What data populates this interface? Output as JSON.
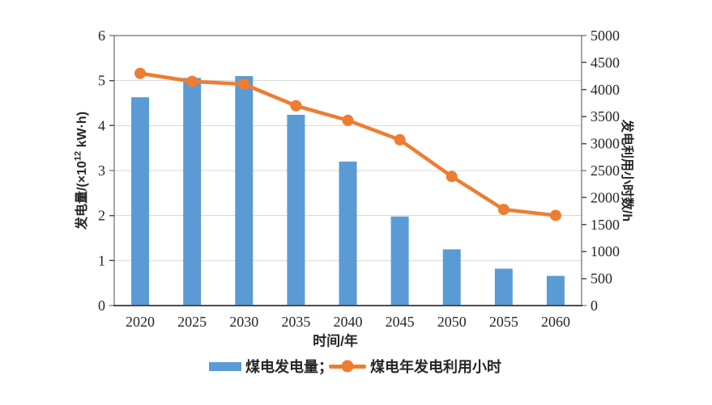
{
  "window": {
    "background": "#ffffff"
  },
  "colors": {
    "bar": "#5B9BD5",
    "line": "#ED7D31",
    "grid": "#D9D9D9",
    "axis": "#4D4D4D",
    "text": "#262626"
  },
  "legend": {
    "bar_label": "煤电发电量；",
    "line_label": "煤电年发电利用小时"
  },
  "axis_titles": {
    "left_prefix": "发电量/(×10",
    "left_sup": "12",
    "left_suffix": " kW·h)",
    "right": "发电利用小时数/h",
    "x": "时间/年"
  },
  "chart_data": {
    "type": "bar",
    "subtype": "combo bar + line with dual y-axes",
    "title": "",
    "categories": [
      "2020",
      "2025",
      "2030",
      "2035",
      "2040",
      "2045",
      "2050",
      "2055",
      "2060"
    ],
    "series": [
      {
        "name": "煤电发电量",
        "type": "bar",
        "y_axis": "left",
        "unit": "×10¹² kW·h",
        "color": "#5B9BD5",
        "values": [
          4.63,
          5.06,
          5.1,
          4.24,
          3.2,
          1.98,
          1.25,
          0.82,
          0.66
        ]
      },
      {
        "name": "煤电年发电利用小时",
        "type": "line",
        "y_axis": "right",
        "unit": "h",
        "color": "#ED7D31",
        "values": [
          4300,
          4150,
          4100,
          3700,
          3430,
          3070,
          2390,
          1780,
          1670
        ]
      }
    ],
    "xlabel": "时间/年",
    "left_axis": {
      "label": "发电量/(×10¹² kW·h)",
      "min": 0,
      "max": 6,
      "tick_step": 1
    },
    "right_axis": {
      "label": "发电利用小时数/h",
      "min": 0,
      "max": 5000,
      "tick_step": 500
    },
    "grid": "horizontal gridlines at left-axis integers 1-5",
    "legend_position": "bottom"
  }
}
